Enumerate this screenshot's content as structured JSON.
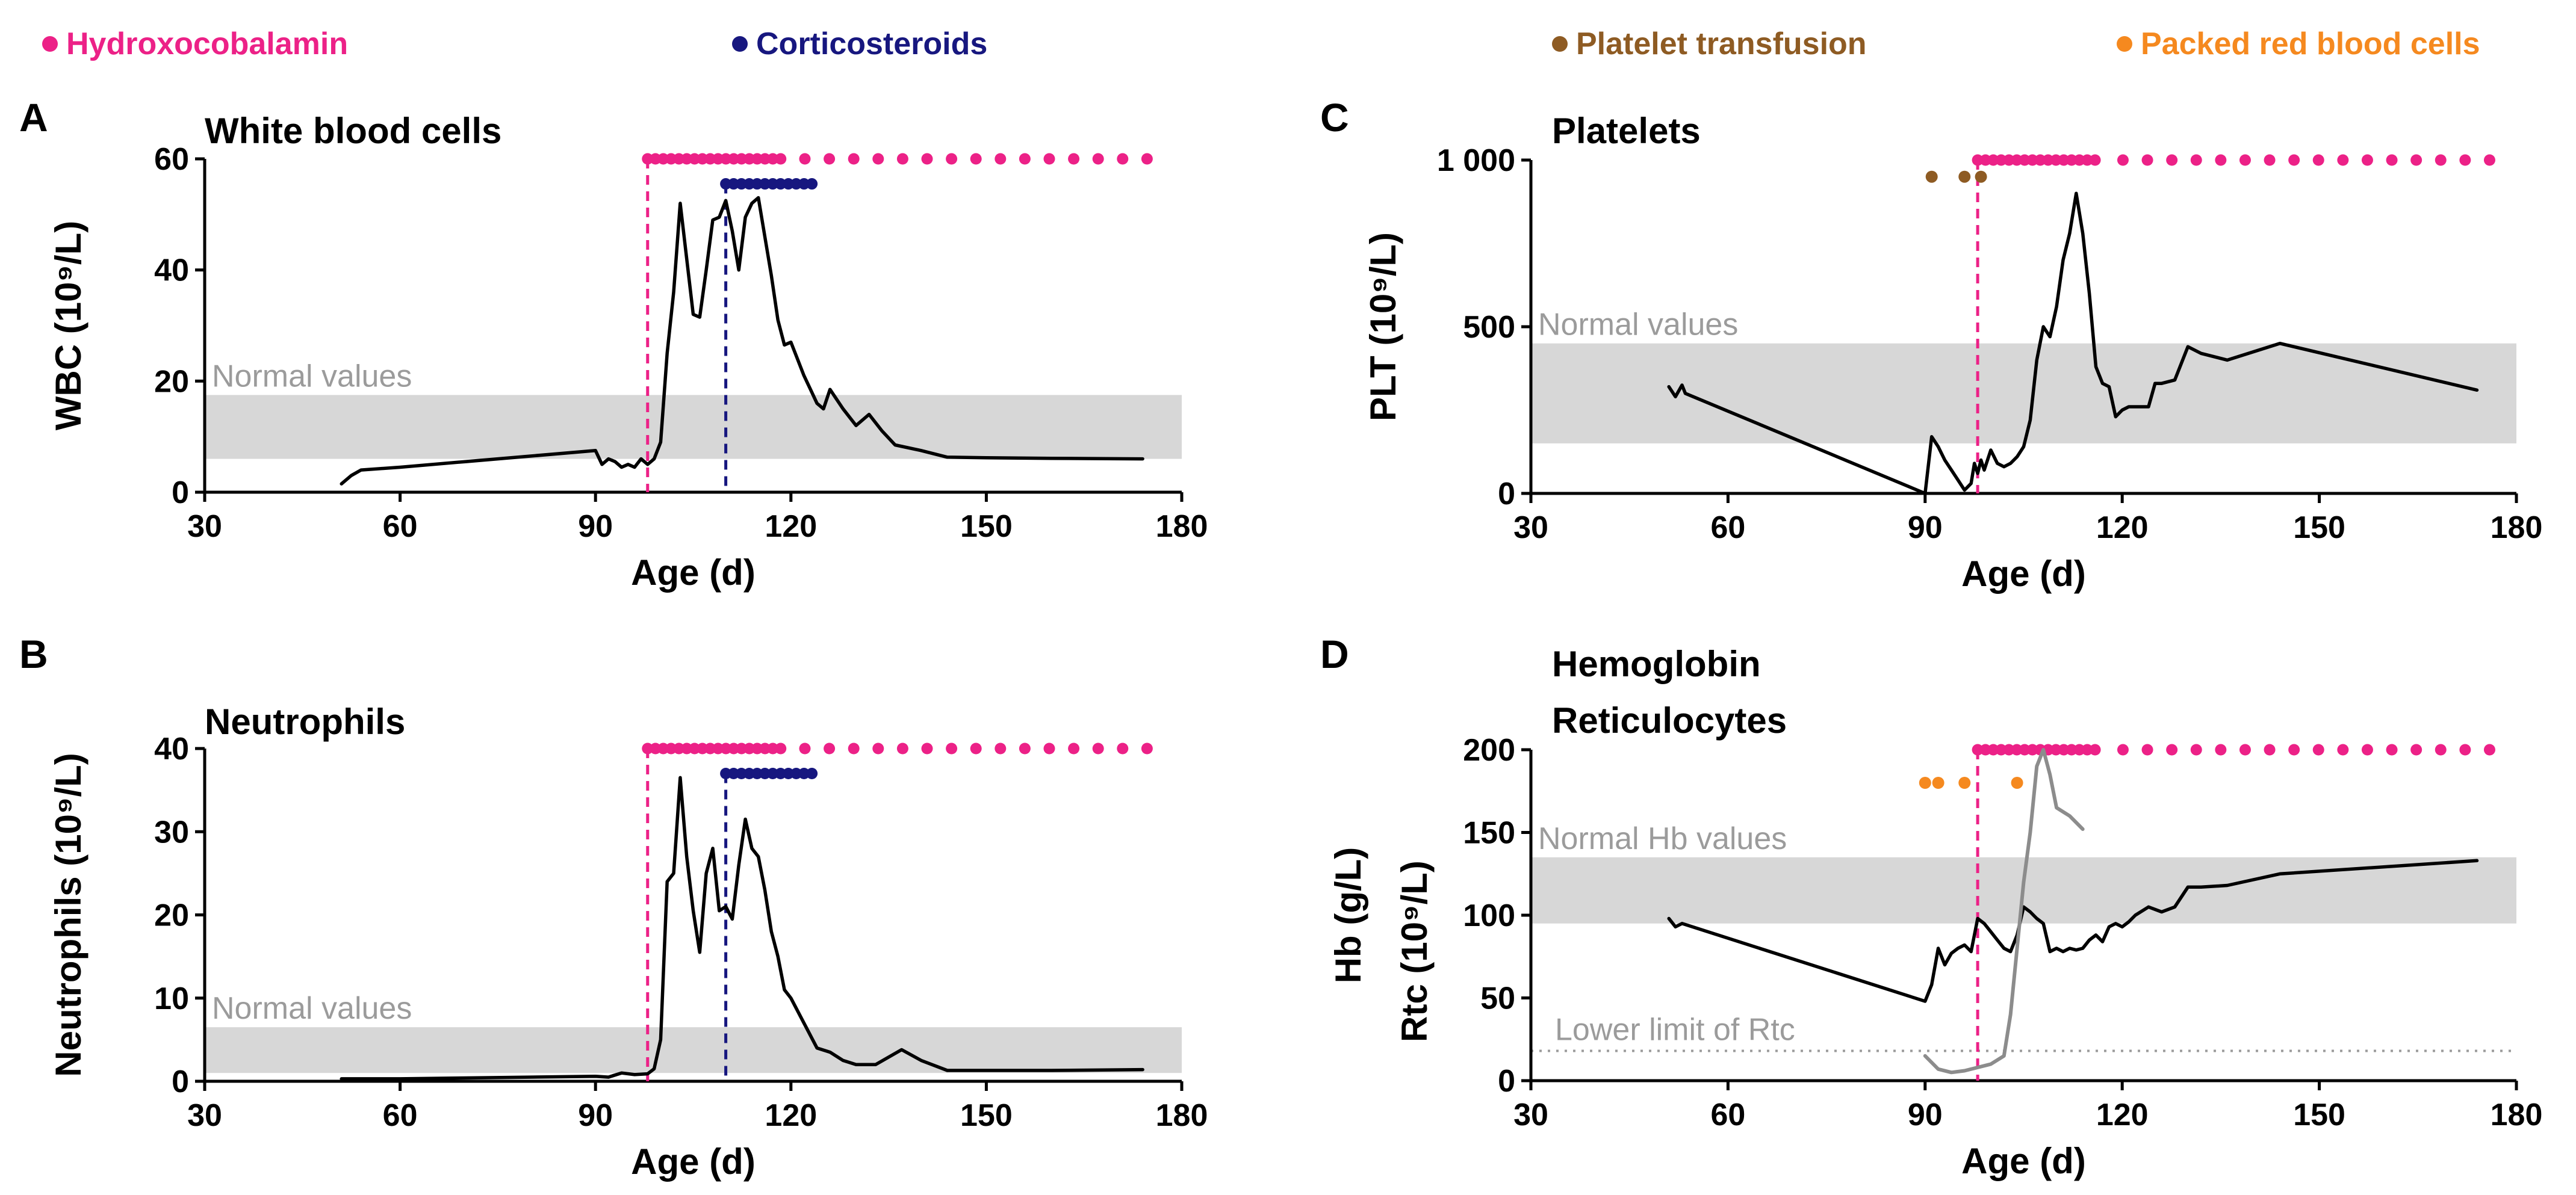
{
  "colors": {
    "hydroxocobalamin": "#ec2187",
    "corticosteroids": "#17177f",
    "platelet_transfusion": "#8e5b23",
    "packed_rbc": "#f5891f",
    "normal_band": "#d7d7d7",
    "series_main": "#000000",
    "series_rtc": "#8c8c8c"
  },
  "legend": [
    {
      "key": "hydroxocobalamin",
      "label": "Hydroxocobalamin",
      "color": "#ec2187"
    },
    {
      "key": "corticosteroids",
      "label": "Corticosteroids",
      "color": "#17177f"
    },
    {
      "key": "platelet_transfusion",
      "label": "Platelet transfusion",
      "color": "#8e5b23"
    },
    {
      "key": "packed_rbc",
      "label": "Packed red blood cells",
      "color": "#f5891f"
    }
  ],
  "chart_data": [
    {
      "id": "A",
      "letter": "A",
      "type": "line",
      "title": "White blood cells",
      "xlabel": "Age (d)",
      "ylabel": "WBC (10⁹/L)",
      "xlim": [
        30,
        180
      ],
      "ylim": [
        0,
        60
      ],
      "xticks": [
        30,
        60,
        90,
        120,
        150,
        180
      ],
      "yticks": [
        0,
        20,
        40,
        60
      ],
      "yticklabels": [
        "0",
        "20",
        "40",
        "60"
      ],
      "normal_band": {
        "label": "Normal values",
        "range": [
          6,
          17.5
        ]
      },
      "vlines": [
        {
          "x": 98,
          "color": "hydroxocobalamin"
        },
        {
          "x": 110,
          "color": "corticosteroids"
        }
      ],
      "treatments": [
        {
          "color": "hydroxocobalamin",
          "y": 60,
          "dense_start": 98,
          "dense_end": 119,
          "sparse_end": 178
        },
        {
          "color": "corticosteroids",
          "y": 55.5,
          "dense_start": 110,
          "dense_end": 124,
          "sparse_end": 124
        }
      ],
      "series": [
        {
          "name": "WBC",
          "color": "series_main",
          "x": [
            51,
            52.5,
            54,
            60,
            70,
            80,
            90,
            91,
            92,
            93,
            94,
            95,
            96,
            97,
            98,
            99,
            100,
            101,
            102,
            103,
            104,
            105,
            106,
            107,
            108,
            109,
            110,
            111,
            112,
            113,
            114,
            115,
            116,
            117,
            118,
            119,
            120,
            121,
            122,
            123,
            124,
            125,
            126,
            128,
            130,
            132,
            134,
            136,
            140,
            144,
            150,
            160,
            174
          ],
          "y": [
            1.5,
            3,
            4,
            4.5,
            5.5,
            6.5,
            7.5,
            5,
            6,
            5.5,
            4.5,
            5,
            4.5,
            6,
            5,
            6,
            9,
            25,
            36,
            52,
            42,
            32,
            31.5,
            40,
            49,
            49.5,
            52.5,
            47,
            40,
            49.5,
            52,
            53,
            46,
            39,
            31,
            26.5,
            27,
            24,
            21,
            18.5,
            16,
            15,
            18.5,
            15,
            12,
            14,
            11,
            8.5,
            7.5,
            6.3,
            6.2,
            6.1,
            6
          ]
        }
      ]
    },
    {
      "id": "B",
      "letter": "B",
      "type": "line",
      "title": "Neutrophils",
      "xlabel": "Age (d)",
      "ylabel": "Neutrophils (10⁹/L)",
      "xlim": [
        30,
        180
      ],
      "ylim": [
        0,
        40
      ],
      "xticks": [
        30,
        60,
        90,
        120,
        150,
        180
      ],
      "yticks": [
        0,
        10,
        20,
        30,
        40
      ],
      "yticklabels": [
        "0",
        "10",
        "20",
        "30",
        "40"
      ],
      "normal_band": {
        "label": "Normal values",
        "range": [
          1,
          6.5
        ]
      },
      "vlines": [
        {
          "x": 98,
          "color": "hydroxocobalamin"
        },
        {
          "x": 110,
          "color": "corticosteroids"
        }
      ],
      "treatments": [
        {
          "color": "hydroxocobalamin",
          "y": 40,
          "dense_start": 98,
          "dense_end": 119,
          "sparse_end": 178
        },
        {
          "color": "corticosteroids",
          "y": 37,
          "dense_start": 110,
          "dense_end": 124,
          "sparse_end": 124
        }
      ],
      "series": [
        {
          "name": "Neutrophils",
          "color": "series_main",
          "x": [
            51,
            60,
            70,
            80,
            90,
            92,
            94,
            96,
            98,
            99,
            100,
            101,
            102,
            103,
            104,
            105,
            106,
            107,
            108,
            109,
            110,
            111,
            112,
            113,
            114,
            115,
            116,
            117,
            118,
            119,
            120,
            122,
            124,
            126,
            128,
            130,
            133,
            137,
            140,
            144,
            150,
            160,
            174
          ],
          "y": [
            0.3,
            0.3,
            0.4,
            0.5,
            0.6,
            0.5,
            1,
            0.8,
            0.9,
            1.5,
            5,
            24,
            25,
            36.5,
            27,
            20.5,
            15.5,
            25,
            28,
            20.5,
            21,
            19.5,
            26,
            31.5,
            28,
            27,
            23,
            18,
            15,
            11,
            10,
            7,
            4,
            3.5,
            2.5,
            2,
            2,
            3.8,
            2.5,
            1.3,
            1.3,
            1.3,
            1.4
          ]
        }
      ]
    },
    {
      "id": "C",
      "letter": "C",
      "type": "line",
      "title": "Platelets",
      "xlabel": "Age (d)",
      "ylabel": "PLT (10⁹/L)",
      "xlim": [
        30,
        180
      ],
      "ylim": [
        0,
        1000
      ],
      "xticks": [
        30,
        60,
        90,
        120,
        150,
        180
      ],
      "yticks": [
        0,
        500,
        1000
      ],
      "yticklabels": [
        "0",
        "500",
        "1 000"
      ],
      "normal_band": {
        "label": "Normal values",
        "range": [
          150,
          450
        ]
      },
      "vlines": [
        {
          "x": 98,
          "color": "hydroxocobalamin"
        }
      ],
      "treatments": [
        {
          "color": "hydroxocobalamin",
          "y": 1000,
          "dense_start": 98,
          "dense_end": 117,
          "sparse_end": 178
        }
      ],
      "transfusions": {
        "color": "platelet_transfusion",
        "y": 950,
        "x": [
          91,
          96,
          98.5
        ]
      },
      "series": [
        {
          "name": "PLT",
          "color": "series_main",
          "x": [
            51,
            52,
            53,
            53.5,
            90,
            91,
            92,
            93,
            94,
            95,
            96,
            97,
            97.5,
            98,
            98.5,
            99,
            100,
            101,
            102,
            103,
            104,
            105,
            106,
            107,
            108,
            109,
            110,
            111,
            112,
            113,
            114,
            115,
            116,
            117,
            118,
            119,
            120,
            121,
            122,
            124,
            125,
            126,
            128,
            130,
            132,
            136,
            144,
            174
          ],
          "y": [
            320,
            290,
            325,
            300,
            0,
            170,
            140,
            100,
            70,
            40,
            10,
            30,
            90,
            60,
            100,
            70,
            130,
            90,
            80,
            90,
            110,
            140,
            220,
            400,
            500,
            470,
            560,
            700,
            780,
            900,
            780,
            600,
            380,
            330,
            320,
            230,
            250,
            260,
            260,
            260,
            330,
            330,
            340,
            440,
            420,
            400,
            450,
            310
          ]
        }
      ]
    },
    {
      "id": "D",
      "letter": "D",
      "type": "line",
      "title": "Hemoglobin",
      "subtitle": "Reticulocytes",
      "xlabel": "Age (d)",
      "ylabel": "Hb (g/L)",
      "ylabel2": "Rtc (10⁹/L)",
      "xlim": [
        30,
        180
      ],
      "ylim": [
        0,
        200
      ],
      "xticks": [
        30,
        60,
        90,
        120,
        150,
        180
      ],
      "yticks": [
        0,
        50,
        100,
        150,
        200
      ],
      "yticklabels": [
        "0",
        "50",
        "100",
        "150",
        "200"
      ],
      "normal_band": {
        "label": "Normal Hb values",
        "range": [
          95,
          135
        ]
      },
      "hline": {
        "label": "Lower limit of Rtc",
        "y": 18
      },
      "vlines": [
        {
          "x": 98,
          "color": "hydroxocobalamin"
        }
      ],
      "treatments": [
        {
          "color": "hydroxocobalamin",
          "y": 200,
          "dense_start": 98,
          "dense_end": 117,
          "sparse_end": 178
        }
      ],
      "transfusions": {
        "color": "packed_rbc",
        "y": 180,
        "x": [
          90,
          92,
          96,
          104
        ]
      },
      "series": [
        {
          "name": "Hb",
          "color": "series_main",
          "x": [
            51,
            52,
            53,
            90,
            91,
            92,
            93,
            94,
            95,
            96,
            97,
            98,
            99,
            100,
            101,
            102,
            103,
            104,
            105,
            106,
            107,
            108,
            109,
            110,
            111,
            112,
            113,
            114,
            115,
            116,
            117,
            118,
            119,
            120,
            121,
            122,
            124,
            126,
            128,
            130,
            132,
            136,
            144,
            174
          ],
          "y": [
            98,
            93,
            95,
            48,
            58,
            80,
            70,
            77,
            80,
            82,
            78,
            98,
            95,
            90,
            85,
            80,
            78,
            88,
            105,
            102,
            98,
            95,
            78,
            80,
            78,
            80,
            79,
            80,
            85,
            88,
            84,
            93,
            95,
            93,
            96,
            100,
            105,
            102,
            105,
            117,
            117,
            118,
            125,
            133
          ]
        },
        {
          "name": "Rtc",
          "color": "series_rtc",
          "x": [
            90,
            92,
            94,
            96,
            98,
            100,
            102,
            103,
            104,
            105,
            106,
            107,
            108,
            109,
            110,
            112,
            114
          ],
          "y": [
            15,
            7,
            5,
            6,
            8,
            10,
            15,
            40,
            80,
            120,
            150,
            190,
            200,
            185,
            165,
            160,
            152
          ]
        }
      ]
    }
  ]
}
